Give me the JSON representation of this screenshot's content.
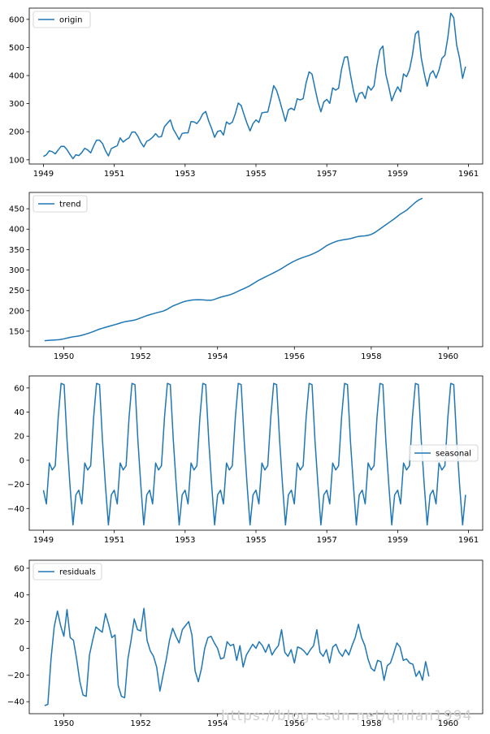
{
  "watermark": "https://blog.csdn.net/qinlan1994",
  "colors": {
    "line": "#1f77b4",
    "axis": "#000000",
    "legend_border": "#cccccc"
  },
  "chart_data": [
    {
      "type": "line",
      "legend": "origin",
      "legend_loc": "upper-left",
      "grid": false,
      "xlim": [
        1948.6,
        1961.4
      ],
      "ylim": [
        85,
        640
      ],
      "xticks": [
        1949,
        1951,
        1953,
        1955,
        1957,
        1959,
        1961
      ],
      "xtick_labels": [
        "1949",
        "1951",
        "1953",
        "1955",
        "1957",
        "1959",
        "1961"
      ],
      "yticks": [
        100,
        200,
        300,
        400,
        500,
        600
      ],
      "ytick_labels": [
        "100",
        "200",
        "300",
        "400",
        "500",
        "600"
      ],
      "x_start": 1949.0,
      "x_step": 0.08333,
      "values": [
        112,
        118,
        132,
        129,
        121,
        135,
        148,
        148,
        136,
        119,
        104,
        118,
        115,
        126,
        141,
        135,
        125,
        149,
        170,
        170,
        158,
        133,
        114,
        140,
        145,
        150,
        178,
        163,
        172,
        178,
        199,
        199,
        184,
        162,
        146,
        166,
        171,
        180,
        193,
        181,
        183,
        218,
        230,
        242,
        209,
        191,
        172,
        194,
        196,
        196,
        236,
        235,
        229,
        243,
        264,
        272,
        237,
        211,
        180,
        201,
        204,
        188,
        235,
        227,
        234,
        264,
        302,
        293,
        259,
        229,
        203,
        229,
        242,
        233,
        267,
        269,
        270,
        315,
        364,
        347,
        312,
        274,
        237,
        278,
        284,
        277,
        317,
        313,
        318,
        374,
        413,
        405,
        355,
        306,
        271,
        306,
        315,
        301,
        356,
        348,
        355,
        422,
        465,
        467,
        404,
        347,
        305,
        336,
        340,
        318,
        362,
        348,
        363,
        435,
        491,
        505,
        404,
        359,
        310,
        337,
        360,
        342,
        406,
        396,
        420,
        472,
        548,
        559,
        463,
        407,
        362,
        405,
        417,
        391,
        419,
        461,
        472,
        535,
        622,
        606,
        508,
        461,
        390,
        432
      ]
    },
    {
      "type": "line",
      "legend": "trend",
      "legend_loc": "upper-left",
      "grid": false,
      "xlim": [
        1949.1,
        1960.9
      ],
      "ylim": [
        112,
        490
      ],
      "xticks": [
        1950,
        1952,
        1954,
        1956,
        1958,
        1960
      ],
      "xtick_labels": [
        "1950",
        "1952",
        "1954",
        "1956",
        "1958",
        "1960"
      ],
      "yticks": [
        150,
        200,
        250,
        300,
        350,
        400,
        450
      ],
      "ytick_labels": [
        "150",
        "200",
        "250",
        "300",
        "350",
        "400",
        "450"
      ],
      "x_start": 1949.5,
      "x_step": 0.08333,
      "values": [
        126.8,
        127.3,
        127.9,
        128.6,
        129.0,
        129.8,
        131.3,
        133.1,
        134.9,
        136.4,
        137.4,
        138.8,
        140.9,
        143.2,
        145.7,
        148.4,
        151.5,
        154.7,
        157.1,
        159.5,
        161.8,
        164.0,
        166.2,
        168.5,
        170.8,
        173.0,
        174.5,
        175.6,
        177.0,
        179.5,
        182.4,
        185.5,
        188.3,
        190.7,
        193.0,
        195.1,
        197.1,
        199.2,
        202.5,
        207.0,
        211.4,
        214.9,
        217.9,
        221.0,
        223.5,
        225.1,
        226.3,
        227.0,
        227.2,
        226.9,
        226.3,
        225.7,
        225.8,
        227.7,
        230.8,
        233.3,
        235.5,
        237.3,
        239.7,
        242.8,
        246.3,
        250.0,
        253.5,
        257.0,
        261.0,
        265.8,
        270.8,
        275.3,
        279.4,
        283.2,
        287.0,
        290.9,
        294.9,
        299.0,
        303.4,
        308.3,
        313.3,
        317.7,
        321.9,
        325.5,
        328.6,
        331.5,
        334.2,
        337.1,
        340.4,
        344.1,
        348.6,
        353.7,
        359.2,
        363.3,
        366.8,
        369.8,
        372.1,
        373.6,
        374.8,
        376.0,
        377.7,
        380.2,
        382.2,
        383.0,
        383.5,
        384.7,
        387.1,
        391.2,
        396.5,
        402.1,
        407.7,
        413.2,
        418.7,
        424.2,
        430.3,
        436.4,
        441.3,
        446.2,
        453.0,
        460.2,
        467.0,
        472.3,
        475.7
      ]
    },
    {
      "type": "line",
      "legend": "seasonal",
      "legend_loc": "center-right",
      "grid": false,
      "xlim": [
        1948.6,
        1961.4
      ],
      "ylim": [
        -58,
        70
      ],
      "xticks": [
        1949,
        1951,
        1953,
        1955,
        1957,
        1959,
        1961
      ],
      "xtick_labels": [
        "1949",
        "1951",
        "1953",
        "1955",
        "1957",
        "1959",
        "1961"
      ],
      "yticks": [
        -40,
        -20,
        0,
        20,
        40,
        60
      ],
      "ytick_labels": [
        "−40",
        "−20",
        "0",
        "20",
        "40",
        "60"
      ],
      "x_start": 1949.0,
      "x_step": 0.08333,
      "pattern": [
        -24.8,
        -36.2,
        -2.2,
        -8.0,
        -4.5,
        35.4,
        63.8,
        62.8,
        16.5,
        -20.6,
        -53.6,
        -28.6
      ],
      "values": []
    },
    {
      "type": "line",
      "legend": "residuals",
      "legend_loc": "upper-left",
      "grid": false,
      "xlim": [
        1949.1,
        1960.9
      ],
      "ylim": [
        -49,
        66
      ],
      "xticks": [
        1950,
        1952,
        1954,
        1956,
        1958,
        1960
      ],
      "xtick_labels": [
        "1950",
        "1952",
        "1954",
        "1956",
        "1958",
        "1960"
      ],
      "yticks": [
        -40,
        -20,
        0,
        20,
        40,
        60
      ],
      "ytick_labels": [
        "−40",
        "−20",
        "0",
        "20",
        "40",
        "60"
      ],
      "x_start": 1949.5,
      "x_step": 0.08333,
      "values": [
        -43,
        -42,
        -8,
        16,
        28,
        17,
        9,
        29,
        8,
        6,
        -8,
        -25,
        -35,
        -36,
        -5,
        6,
        16,
        14,
        12,
        26,
        18,
        8,
        10,
        -28,
        -36,
        -37,
        -8,
        6,
        22,
        14,
        13,
        30,
        6,
        -2,
        -6,
        -14,
        -32,
        -20,
        -8,
        6,
        15,
        9,
        4,
        14,
        17,
        20,
        10,
        -17,
        -25,
        -15,
        0,
        8,
        9,
        4,
        0,
        -8,
        -7,
        5,
        2,
        3,
        -9,
        2,
        -14,
        -5,
        -1,
        3,
        0,
        5,
        2,
        -3,
        3,
        -5,
        -1,
        2,
        14,
        -3,
        -6,
        -1,
        -11,
        1,
        0,
        -2,
        -5,
        -1,
        2,
        14,
        -3,
        -6,
        -1,
        -11,
        1,
        3,
        -3,
        -6,
        -1,
        -5,
        2,
        8,
        18,
        8,
        2,
        -8,
        -15,
        -17,
        -9,
        -10,
        -24,
        -13,
        -11,
        -4,
        4,
        1,
        -9,
        -8,
        -11,
        -12,
        -21,
        -17,
        -24,
        -10,
        -21
      ]
    }
  ]
}
